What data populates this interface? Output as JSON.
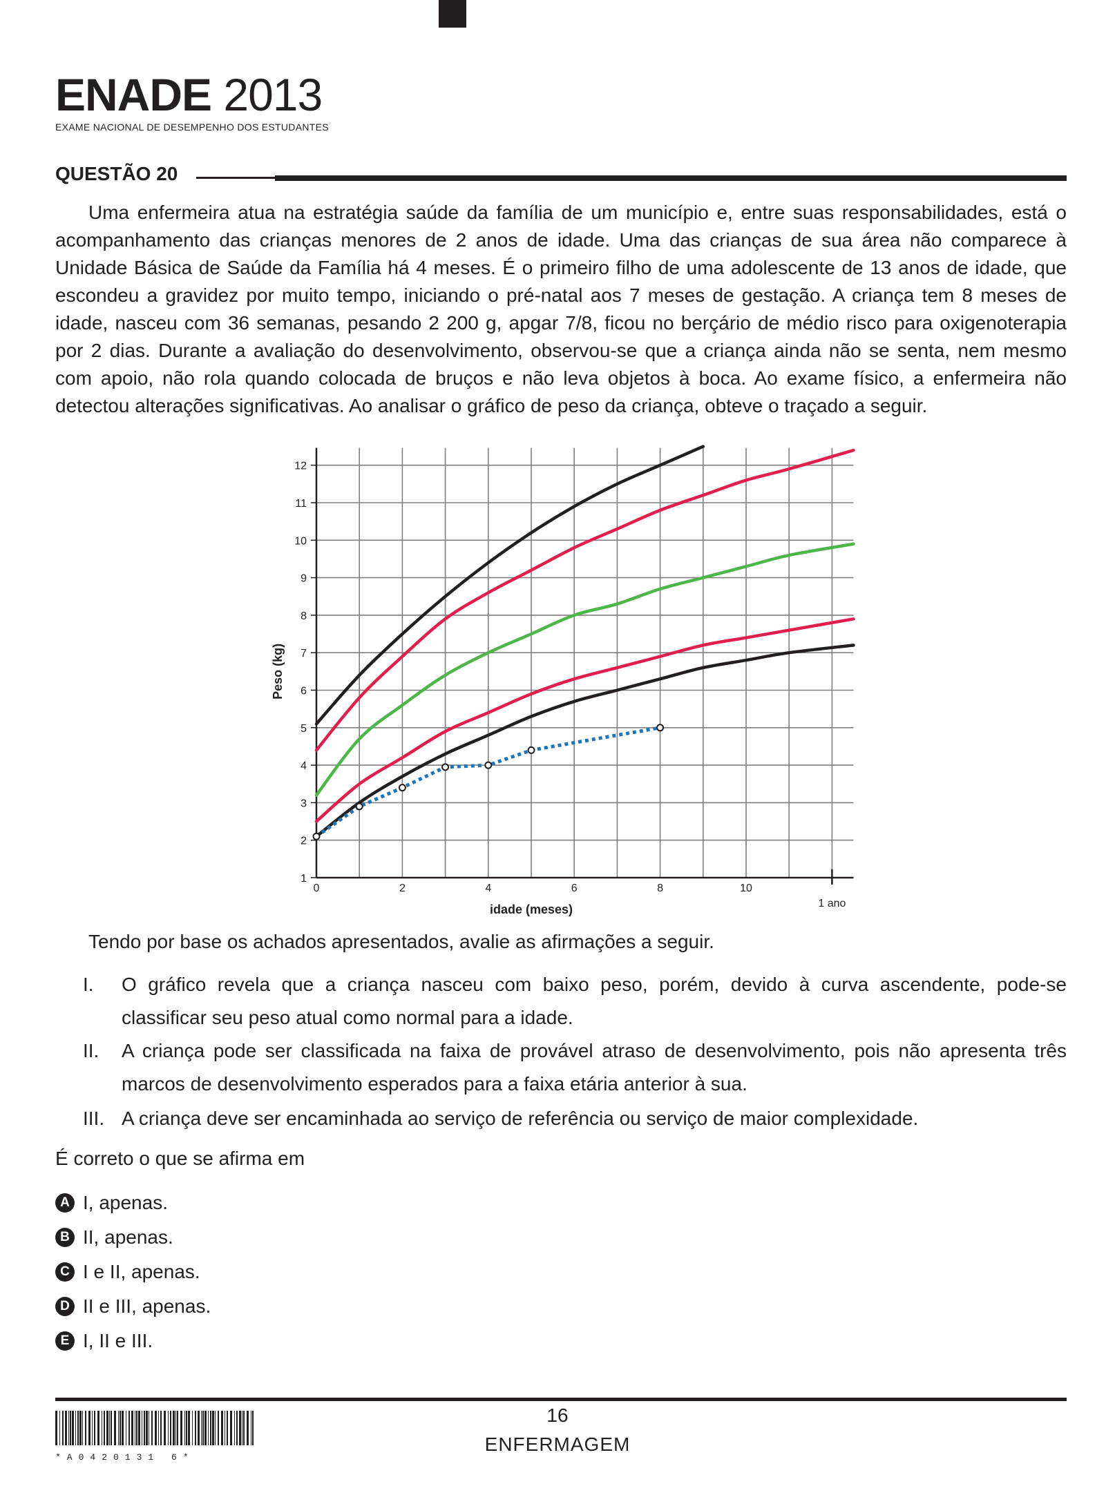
{
  "header": {
    "logo_bold": "ENADE",
    "logo_year": "2013",
    "logo_subtitle": "EXAME NACIONAL DE DESEMPENHO DOS ESTUDANTES"
  },
  "question": {
    "title": "QUESTÃO 20",
    "text": "Uma enfermeira atua na estratégia saúde da família de um município e, entre suas responsabilidades, está o acompanhamento das crianças menores de 2 anos de idade. Uma das crianças de sua área não comparece à Unidade Básica de Saúde da Família há 4 meses. É o primeiro filho de uma adolescente de 13 anos de idade, que escondeu a gravidez por muito tempo, iniciando o pré-natal aos 7 meses de gestação. A criança tem 8 meses de idade, nasceu com 36 semanas, pesando 2 200 g, apgar 7/8, ficou no berçário de médio risco para oxigenoterapia por 2 dias. Durante a avaliação do desenvolvimento, observou-se que a criança ainda não se senta, nem mesmo com apoio, não rola quando colocada de bruços e não leva objetos à boca. Ao exame físico, a enfermeira não detectou alterações significativas. Ao analisar o gráfico de peso da criança, obteve o traçado a seguir.",
    "intro2": "Tendo por base os achados apresentados, avalie as afirmações a seguir.",
    "statements": [
      {
        "num": "I.",
        "text": "O gráfico revela que a criança nasceu com baixo peso, porém, devido à curva ascendente, pode-se classificar seu peso atual como normal para a idade."
      },
      {
        "num": "II.",
        "text": "A criança pode ser classificada na faixa de provável atraso de desenvolvimento, pois não apresenta três marcos de desenvolvimento esperados para a faixa etária anterior à sua."
      },
      {
        "num": "III.",
        "text": "A criança deve ser encaminhada ao serviço de referência ou serviço de maior complexidade."
      }
    ],
    "conclusion": "É correto o que se afirma em",
    "options": [
      {
        "letter": "A",
        "text": "I, apenas."
      },
      {
        "letter": "B",
        "text": "II, apenas."
      },
      {
        "letter": "C",
        "text": "I e II, apenas."
      },
      {
        "letter": "D",
        "text": "II e III, apenas."
      },
      {
        "letter": "E",
        "text": "I, II e III."
      }
    ]
  },
  "chart_data": {
    "type": "line",
    "xlabel": "idade (meses)",
    "ylabel": "Peso (kg)",
    "xlim": [
      0,
      12.5
    ],
    "ylim": [
      1,
      12.5
    ],
    "x_ticks": [
      0,
      2,
      4,
      6,
      8,
      10
    ],
    "y_ticks": [
      1,
      2,
      3,
      4,
      5,
      6,
      7,
      8,
      9,
      10,
      11,
      12
    ],
    "extra_x_label": {
      "x": 12,
      "text": "1 ano"
    },
    "grid": true,
    "series": [
      {
        "color": "#231f20",
        "style": "solid",
        "x": [
          0,
          1,
          2,
          3,
          4,
          5,
          6,
          7,
          8,
          9
        ],
        "y": [
          5.1,
          6.4,
          7.5,
          8.5,
          9.4,
          10.2,
          10.9,
          11.5,
          12.0,
          12.5
        ]
      },
      {
        "color": "#e21e4e",
        "style": "solid",
        "x": [
          0,
          1,
          2,
          3,
          4,
          5,
          6,
          7,
          8,
          9,
          10,
          11,
          12.5
        ],
        "y": [
          4.4,
          5.8,
          6.9,
          7.9,
          8.6,
          9.2,
          9.8,
          10.3,
          10.8,
          11.2,
          11.6,
          11.9,
          12.4
        ]
      },
      {
        "color": "#4cb748",
        "style": "solid",
        "x": [
          0,
          1,
          2,
          3,
          4,
          5,
          6,
          7,
          8,
          9,
          10,
          11,
          12.5
        ],
        "y": [
          3.2,
          4.7,
          5.6,
          6.4,
          7.0,
          7.5,
          8.0,
          8.3,
          8.7,
          9.0,
          9.3,
          9.6,
          9.9
        ]
      },
      {
        "color": "#e21e4e",
        "style": "solid",
        "x": [
          0,
          1,
          2,
          3,
          4,
          5,
          6,
          7,
          8,
          9,
          10,
          11,
          12.5
        ],
        "y": [
          2.5,
          3.5,
          4.2,
          4.9,
          5.4,
          5.9,
          6.3,
          6.6,
          6.9,
          7.2,
          7.4,
          7.6,
          7.9
        ]
      },
      {
        "color": "#231f20",
        "style": "solid",
        "x": [
          0,
          1,
          2,
          3,
          4,
          5,
          6,
          7,
          8,
          9,
          10,
          11,
          12.5
        ],
        "y": [
          2.1,
          3.0,
          3.7,
          4.3,
          4.8,
          5.3,
          5.7,
          6.0,
          6.3,
          6.6,
          6.8,
          7.0,
          7.2
        ]
      },
      {
        "color": "#1b75bc",
        "style": "dotted",
        "markers": true,
        "x": [
          0,
          1,
          2,
          3,
          4,
          5,
          8
        ],
        "y": [
          2.1,
          2.9,
          3.4,
          3.95,
          4.0,
          4.4,
          5.0
        ]
      }
    ]
  },
  "footer": {
    "page_number": "16",
    "course": "ENFERMAGEM",
    "barcode_text": "*A0420131 6*"
  }
}
